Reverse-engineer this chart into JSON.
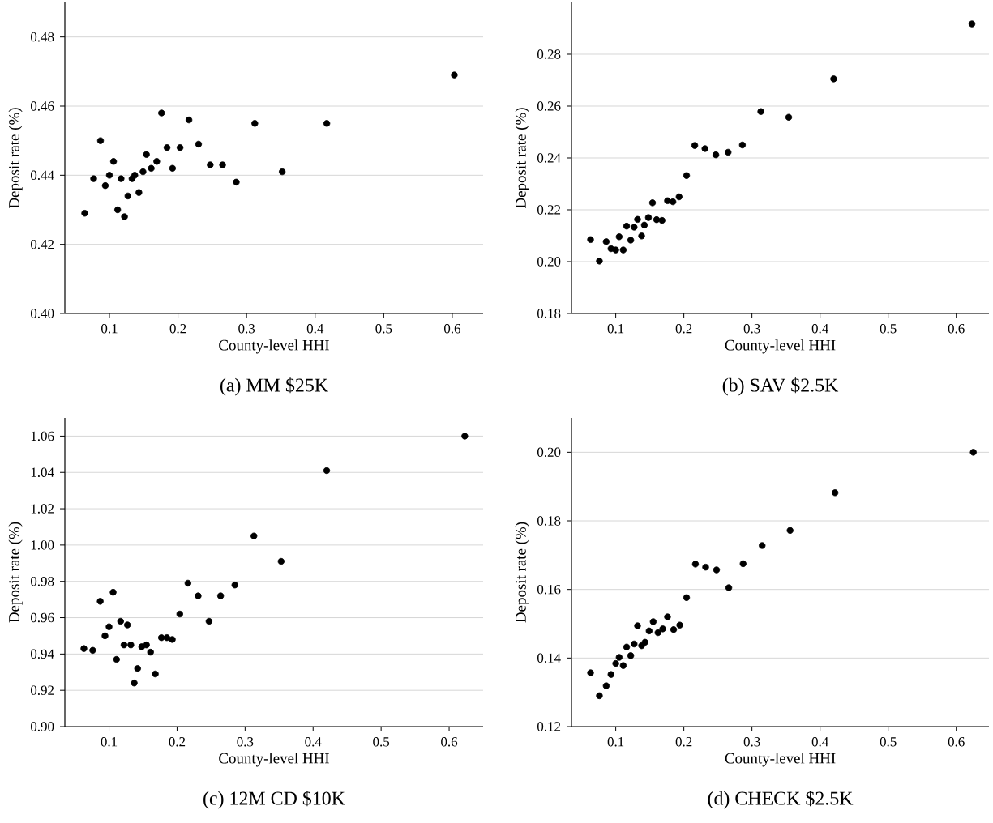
{
  "chart_data": [
    {
      "type": "scatter",
      "title": "(a) MM $25K",
      "xlabel": "County-level HHI",
      "ylabel": "Deposit rate (%)",
      "color": "#000000",
      "marker": "circle",
      "grid": "y",
      "xlim": [
        0.035,
        0.645
      ],
      "ylim": [
        0.4,
        0.49
      ],
      "xticks": [
        0.1,
        0.2,
        0.3,
        0.4,
        0.5,
        0.6
      ],
      "yticks": [
        {
          "value": 0.4,
          "label": "0.40"
        },
        {
          "value": 0.42,
          "label": "0.42"
        },
        {
          "value": 0.44,
          "label": "0.44"
        },
        {
          "value": 0.46,
          "label": "0.46"
        },
        {
          "value": 0.48,
          "label": "0.48"
        }
      ],
      "x": [
        0.064,
        0.077,
        0.087,
        0.094,
        0.1,
        0.106,
        0.112,
        0.117,
        0.122,
        0.127,
        0.133,
        0.137,
        0.143,
        0.149,
        0.154,
        0.161,
        0.169,
        0.176,
        0.184,
        0.192,
        0.203,
        0.216,
        0.23,
        0.247,
        0.265,
        0.285,
        0.312,
        0.352,
        0.417,
        0.603
      ],
      "values": [
        0.429,
        0.439,
        0.45,
        0.437,
        0.44,
        0.444,
        0.43,
        0.439,
        0.428,
        0.434,
        0.439,
        0.44,
        0.435,
        0.441,
        0.446,
        0.442,
        0.444,
        0.458,
        0.448,
        0.442,
        0.448,
        0.456,
        0.449,
        0.443,
        0.443,
        0.438,
        0.455,
        0.441,
        0.455,
        0.469
      ]
    },
    {
      "type": "scatter",
      "title": "(b) SAV $2.5K",
      "xlabel": "County-level HHI",
      "ylabel": "Deposit rate (%)",
      "color": "#000000",
      "marker": "circle",
      "grid": "y",
      "xlim": [
        0.035,
        0.648
      ],
      "ylim": [
        0.18,
        0.3
      ],
      "xticks": [
        0.1,
        0.2,
        0.3,
        0.4,
        0.5,
        0.6
      ],
      "yticks": [
        {
          "value": 0.18,
          "label": "0.18"
        },
        {
          "value": 0.2,
          "label": "0.20"
        },
        {
          "value": 0.22,
          "label": "0.22"
        },
        {
          "value": 0.24,
          "label": "0.24"
        },
        {
          "value": 0.26,
          "label": "0.26"
        },
        {
          "value": 0.28,
          "label": "0.28"
        }
      ],
      "x": [
        0.063,
        0.076,
        0.086,
        0.093,
        0.1,
        0.105,
        0.111,
        0.116,
        0.122,
        0.127,
        0.132,
        0.138,
        0.142,
        0.148,
        0.154,
        0.16,
        0.168,
        0.176,
        0.184,
        0.193,
        0.204,
        0.216,
        0.231,
        0.247,
        0.265,
        0.286,
        0.313,
        0.354,
        0.42,
        0.623
      ],
      "values": [
        0.2085,
        0.2002,
        0.2077,
        0.205,
        0.2045,
        0.2096,
        0.2045,
        0.2137,
        0.2083,
        0.2133,
        0.2163,
        0.2099,
        0.2141,
        0.217,
        0.2227,
        0.2162,
        0.2159,
        0.2235,
        0.2231,
        0.225,
        0.2332,
        0.2448,
        0.2436,
        0.2412,
        0.2422,
        0.245,
        0.2579,
        0.2557,
        0.2705,
        0.2917
      ]
    },
    {
      "type": "scatter",
      "title": "(c) 12M CD $10K",
      "xlabel": "County-level HHI",
      "ylabel": "Deposit rate (%)",
      "color": "#000000",
      "marker": "circle",
      "grid": "y",
      "xlim": [
        0.035,
        0.65
      ],
      "ylim": [
        0.9,
        1.07
      ],
      "xticks": [
        0.1,
        0.2,
        0.3,
        0.4,
        0.5,
        0.6
      ],
      "yticks": [
        {
          "value": 0.9,
          "label": "0.90"
        },
        {
          "value": 0.92,
          "label": "0.92"
        },
        {
          "value": 0.94,
          "label": "0.94"
        },
        {
          "value": 0.96,
          "label": "0.96"
        },
        {
          "value": 0.98,
          "label": "0.98"
        },
        {
          "value": 1.0,
          "label": "1.00"
        },
        {
          "value": 1.02,
          "label": "1.02"
        },
        {
          "value": 1.04,
          "label": "1.04"
        },
        {
          "value": 1.06,
          "label": "1.06"
        }
      ],
      "x": [
        0.063,
        0.076,
        0.087,
        0.094,
        0.1,
        0.106,
        0.111,
        0.117,
        0.122,
        0.127,
        0.132,
        0.137,
        0.142,
        0.148,
        0.155,
        0.161,
        0.168,
        0.177,
        0.185,
        0.193,
        0.204,
        0.216,
        0.231,
        0.247,
        0.264,
        0.285,
        0.313,
        0.353,
        0.42,
        0.623
      ],
      "values": [
        0.943,
        0.942,
        0.969,
        0.95,
        0.955,
        0.974,
        0.937,
        0.958,
        0.945,
        0.956,
        0.945,
        0.924,
        0.932,
        0.944,
        0.945,
        0.941,
        0.929,
        0.949,
        0.949,
        0.948,
        0.962,
        0.979,
        0.972,
        0.958,
        0.972,
        0.978,
        1.005,
        0.991,
        1.041,
        1.06
      ]
    },
    {
      "type": "scatter",
      "title": "(d) CHECK $2.5K",
      "xlabel": "County-level HHI",
      "ylabel": "Deposit rate (%)",
      "color": "#000000",
      "marker": "circle",
      "grid": "y",
      "xlim": [
        0.035,
        0.648
      ],
      "ylim": [
        0.12,
        0.21
      ],
      "xticks": [
        0.1,
        0.2,
        0.3,
        0.4,
        0.5,
        0.6
      ],
      "yticks": [
        {
          "value": 0.12,
          "label": "0.12"
        },
        {
          "value": 0.14,
          "label": "0.14"
        },
        {
          "value": 0.16,
          "label": "0.16"
        },
        {
          "value": 0.18,
          "label": "0.18"
        },
        {
          "value": 0.2,
          "label": "0.20"
        }
      ],
      "x": [
        0.063,
        0.076,
        0.086,
        0.093,
        0.1,
        0.105,
        0.111,
        0.116,
        0.122,
        0.127,
        0.132,
        0.138,
        0.143,
        0.149,
        0.155,
        0.162,
        0.169,
        0.176,
        0.185,
        0.194,
        0.204,
        0.217,
        0.232,
        0.248,
        0.266,
        0.287,
        0.315,
        0.356,
        0.422,
        0.625
      ],
      "values": [
        0.1357,
        0.129,
        0.1319,
        0.1352,
        0.1384,
        0.1402,
        0.1378,
        0.1432,
        0.1407,
        0.1441,
        0.1494,
        0.1436,
        0.1446,
        0.1479,
        0.1506,
        0.1474,
        0.1485,
        0.152,
        0.1483,
        0.1496,
        0.1576,
        0.1674,
        0.1665,
        0.1657,
        0.1605,
        0.1675,
        0.1728,
        0.1772,
        0.1882,
        0.2
      ]
    }
  ]
}
